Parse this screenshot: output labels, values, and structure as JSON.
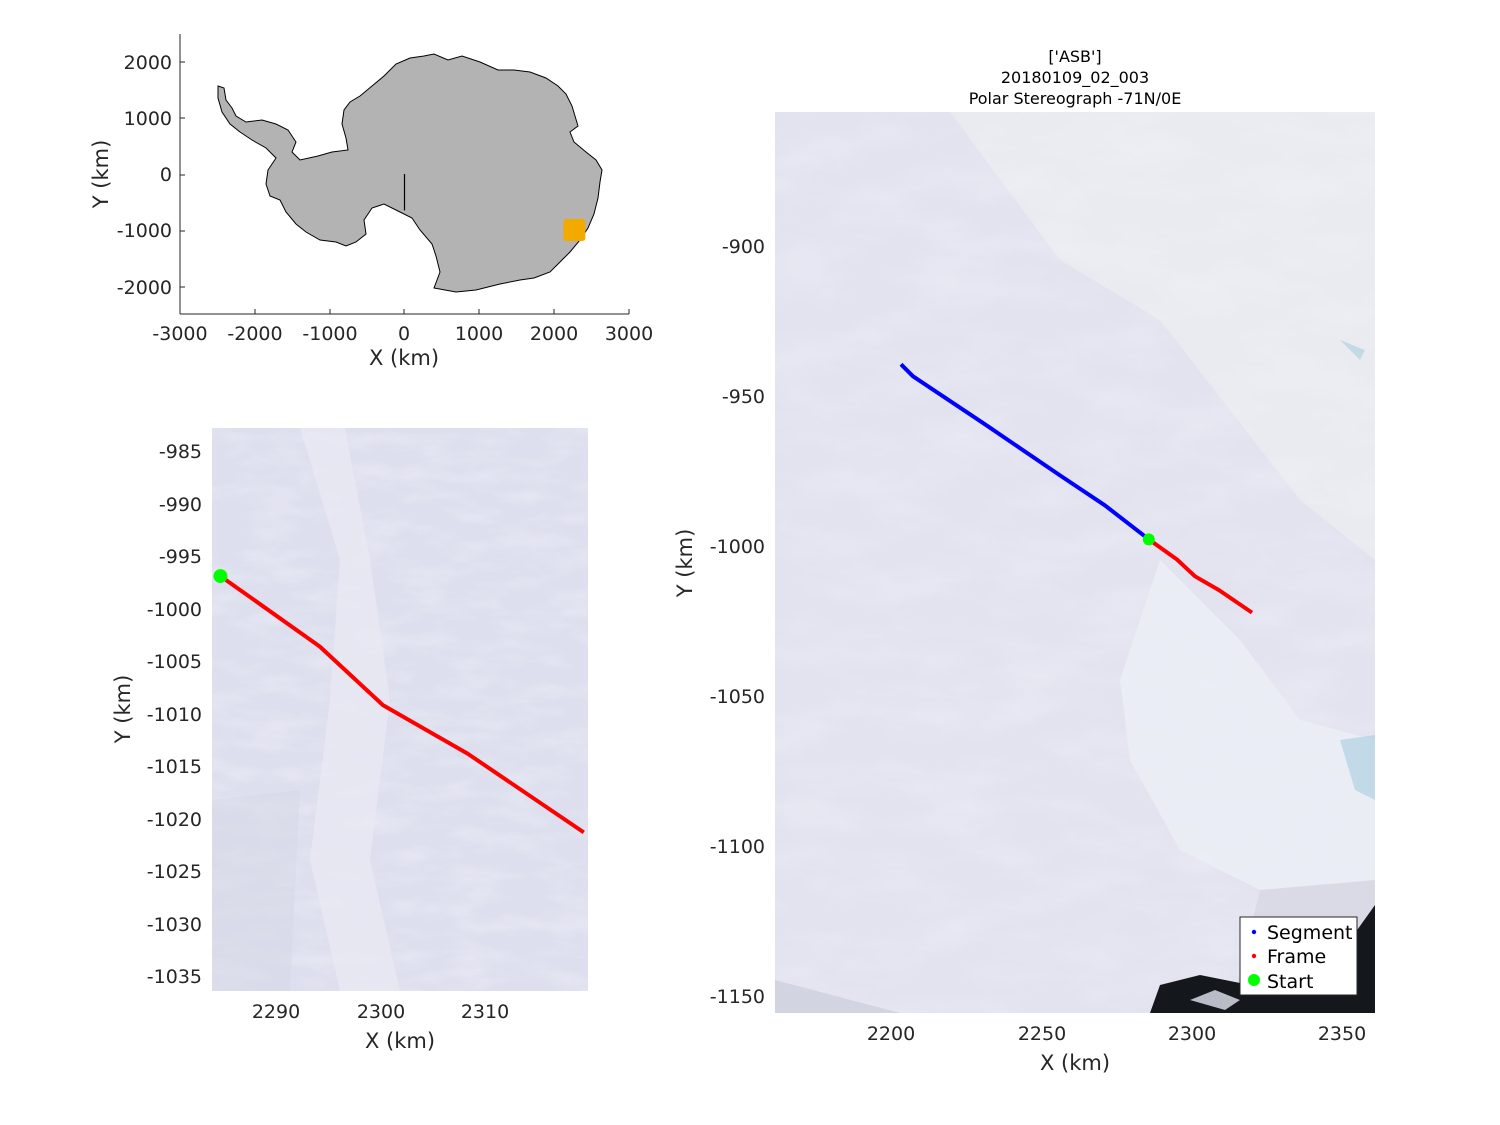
{
  "figure": {
    "title_lines": [
      "['ASB']",
      "20180109_02_003",
      "Polar Stereograph -71N/0E"
    ]
  },
  "overview": {
    "xlabel": "X (km)",
    "ylabel": "Y (km)",
    "xlim": [
      -3000,
      3000
    ],
    "ylim": [
      -2500,
      2500
    ],
    "xticks": [
      "-3000",
      "-2000",
      "-1000",
      "0",
      "1000",
      "2000",
      "3000"
    ],
    "yticks": [
      "2000",
      "1000",
      "0",
      "-1000",
      "-2000"
    ],
    "land_color": "#b3b3b3",
    "marker_color": "#f2a900",
    "marker_center": {
      "x": 2270,
      "y": -1000
    },
    "meridian_line": {
      "x": [
        0,
        0
      ],
      "y": [
        0,
        -650
      ]
    }
  },
  "zoom": {
    "xlabel": "X (km)",
    "ylabel": "Y (km)",
    "xlim": [
      2283.8,
      2319.4
    ],
    "ylim": [
      -1036.8,
      -983.2
    ],
    "xticks": [
      "2290",
      "2300",
      "2310"
    ],
    "yticks": [
      "-985",
      "-990",
      "-995",
      "-1000",
      "-1005",
      "-1010",
      "-1015",
      "-1020",
      "-1025",
      "-1030",
      "-1035"
    ]
  },
  "main": {
    "xlabel": "X (km)",
    "ylabel": "Y (km)",
    "xlim": [
      2160,
      2360
    ],
    "ylim": [
      -1155,
      -855
    ],
    "xticks": [
      "2200",
      "2250",
      "2300",
      "2350"
    ],
    "yticks": [
      "-900",
      "-950",
      "-1000",
      "-1050",
      "-1100",
      "-1150"
    ],
    "legend": {
      "location": "bottom-right",
      "items": [
        {
          "label": "Segment",
          "color": "#0000ff"
        },
        {
          "label": "Frame",
          "color": "#ff0000"
        },
        {
          "label": "Start",
          "color": "#00ff00"
        }
      ]
    }
  },
  "chart_data": {
    "type": "scatter",
    "segment": {
      "color": "#0000ff",
      "x": [
        2202,
        2206,
        2230,
        2255,
        2270,
        2284.6
      ],
      "y": [
        -939,
        -943,
        -959,
        -976,
        -986,
        -997.3
      ]
    },
    "frame": {
      "color": "#ff0000",
      "x": [
        2284.6,
        2294,
        2300,
        2308,
        2319
      ],
      "y": [
        -997.3,
        -1004,
        -1009.6,
        -1014.2,
        -1021.7
      ]
    },
    "start": {
      "color": "#00ff00",
      "x": 2284.6,
      "y": -997.3
    }
  }
}
